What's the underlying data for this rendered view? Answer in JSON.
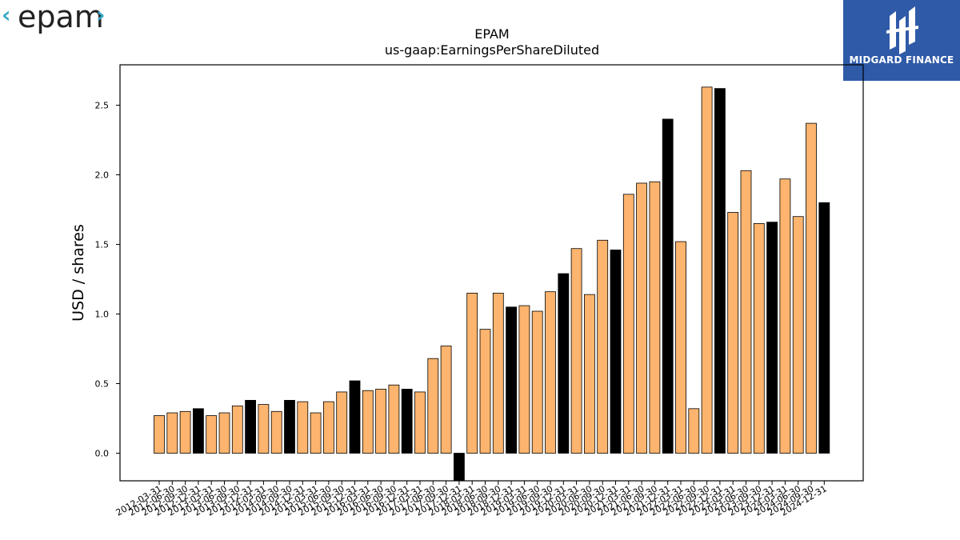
{
  "brand": {
    "left_logo_text": "epam",
    "right_logo_text": "MIDGARD FINANCE",
    "right_logo_bg": "#2f5aa8",
    "left_logo_color": "#39a8c8"
  },
  "chart_data": {
    "type": "bar",
    "title": "EPAM",
    "subtitle": "us-gaap:EarningsPerShareDiluted",
    "xlabel": "",
    "ylabel": "USD / shares",
    "ylim": [
      -0.2,
      2.8
    ],
    "yticks": [
      0.0,
      0.5,
      1.0,
      1.5,
      2.0,
      2.5
    ],
    "ytick_labels": [
      "0.0",
      "0.5",
      "1.0",
      "1.5",
      "2.0",
      "2.5"
    ],
    "grid": false,
    "colors": {
      "quarter": "#fdb46e",
      "year_end": "#000000",
      "edge": "#000000"
    },
    "categories": [
      "2012-03-31",
      "2012-06-30",
      "2012-09-30",
      "2012-12-31",
      "2013-03-31",
      "2013-06-30",
      "2013-09-30",
      "2013-12-31",
      "2014-03-31",
      "2014-06-30",
      "2014-09-30",
      "2014-12-31",
      "2015-03-31",
      "2015-06-30",
      "2015-09-30",
      "2015-12-31",
      "2016-03-31",
      "2016-06-30",
      "2016-09-30",
      "2016-12-31",
      "2017-03-31",
      "2017-06-30",
      "2017-09-30",
      "2017-12-31",
      "2018-03-31",
      "2018-06-30",
      "2018-09-30",
      "2018-12-31",
      "2019-03-31",
      "2019-06-30",
      "2019-09-30",
      "2019-12-31",
      "2020-03-31",
      "2020-06-30",
      "2020-09-30",
      "2020-12-31",
      "2021-03-31",
      "2021-06-30",
      "2021-09-30",
      "2021-12-31",
      "2022-03-31",
      "2022-06-30",
      "2022-09-30",
      "2022-12-31",
      "2023-03-31",
      "2023-06-30",
      "2023-09-30",
      "2023-12-31",
      "2024-03-31",
      "2024-06-30",
      "2024-09-30",
      "2024-12-31"
    ],
    "values": [
      0.27,
      0.29,
      0.3,
      0.32,
      0.27,
      0.29,
      0.34,
      0.38,
      0.35,
      0.3,
      0.38,
      0.37,
      0.29,
      0.37,
      0.44,
      0.52,
      0.45,
      0.46,
      0.49,
      0.46,
      0.44,
      0.68,
      0.77,
      -0.2,
      1.15,
      0.89,
      1.15,
      1.05,
      1.06,
      1.02,
      1.16,
      1.29,
      1.47,
      1.14,
      1.53,
      1.46,
      1.86,
      1.94,
      1.95,
      2.4,
      1.52,
      0.32,
      2.63,
      2.62,
      1.73,
      2.03,
      1.65,
      1.66,
      1.97,
      1.7,
      2.37,
      1.8
    ],
    "highlight_indices": [
      3,
      7,
      10,
      15,
      19,
      23,
      27,
      31,
      35,
      39,
      43,
      47,
      51
    ]
  }
}
